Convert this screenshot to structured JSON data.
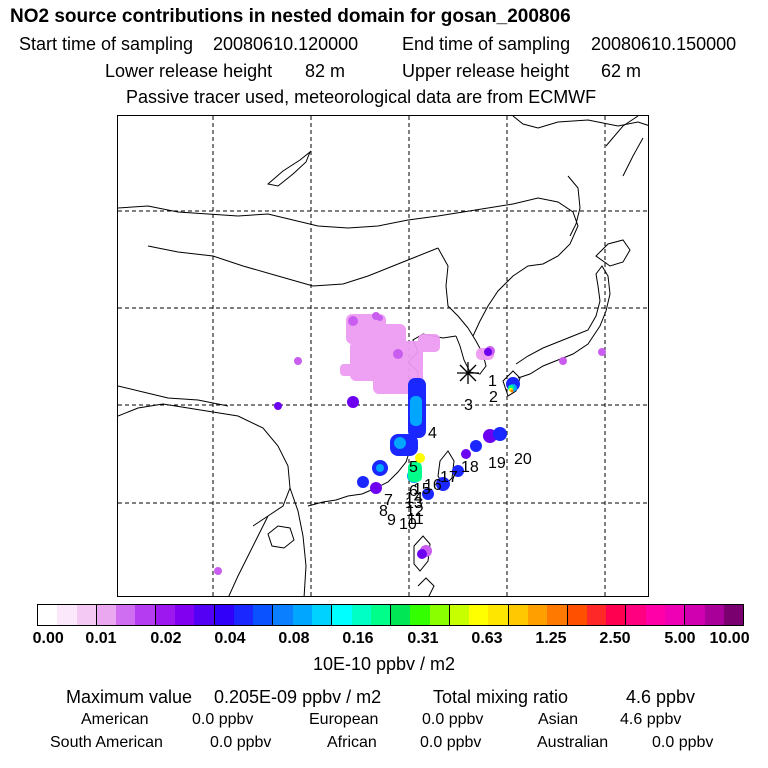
{
  "title": "NO2 source contributions in nested domain for gosan_200806",
  "header": {
    "start_label": "Start time of sampling",
    "start_value": "20080610.120000",
    "end_label": "End time of sampling",
    "end_value": "20080610.150000",
    "lower_label": "Lower release height",
    "lower_value": "82 m",
    "upper_label": "Upper release height",
    "upper_value": "62 m",
    "note": "Passive tracer used, meteorological data are from ECMWF"
  },
  "map": {
    "receptor_marker": "asterisk",
    "site_labels": [
      "1",
      "2",
      "3",
      "4",
      "5",
      "6",
      "7",
      "8",
      "9",
      "10",
      "11",
      "12",
      "13",
      "14",
      "15",
      "16",
      "17",
      "18",
      "19",
      "20"
    ]
  },
  "legend": {
    "tick_labels": [
      "0.00",
      "0.01",
      "0.02",
      "0.04",
      "0.08",
      "0.16",
      "0.31",
      "0.63",
      "1.25",
      "2.50",
      "5.00",
      "10.00"
    ],
    "unit": "10E-10 ppbv / m2",
    "colors": [
      "#ffffff",
      "#fbe9fb",
      "#f4caf4",
      "#eaa8f0",
      "#cf6ef0",
      "#b53cf0",
      "#9d17ef",
      "#8200f0",
      "#5400f5",
      "#3000f8",
      "#1a28ff",
      "#0a52ff",
      "#0a7fff",
      "#00a6ff",
      "#00d2ff",
      "#00ffff",
      "#00ffc4",
      "#00ff8a",
      "#00e655",
      "#33ff00",
      "#8aff00",
      "#c8ff00",
      "#ffff00",
      "#ffe600",
      "#ffc800",
      "#ffa000",
      "#ff7800",
      "#ff5000",
      "#ff2828",
      "#ff0050",
      "#ff0080",
      "#ff00a8",
      "#f000b4",
      "#d000b0",
      "#a80098",
      "#7a0070"
    ]
  },
  "stats": {
    "max_label": "Maximum value",
    "max_value": "0.205E-09 ppbv / m2",
    "total_label": "Total mixing ratio",
    "total_value": "4.6 ppbv",
    "regions": [
      {
        "name": "American",
        "value": "0.0 ppbv"
      },
      {
        "name": "European",
        "value": "0.0 ppbv"
      },
      {
        "name": "Asian",
        "value": "4.6 ppbv"
      },
      {
        "name": "South American",
        "value": "0.0 ppbv"
      },
      {
        "name": "African",
        "value": "0.0 ppbv"
      },
      {
        "name": "Australian",
        "value": "0.0 ppbv"
      }
    ]
  }
}
